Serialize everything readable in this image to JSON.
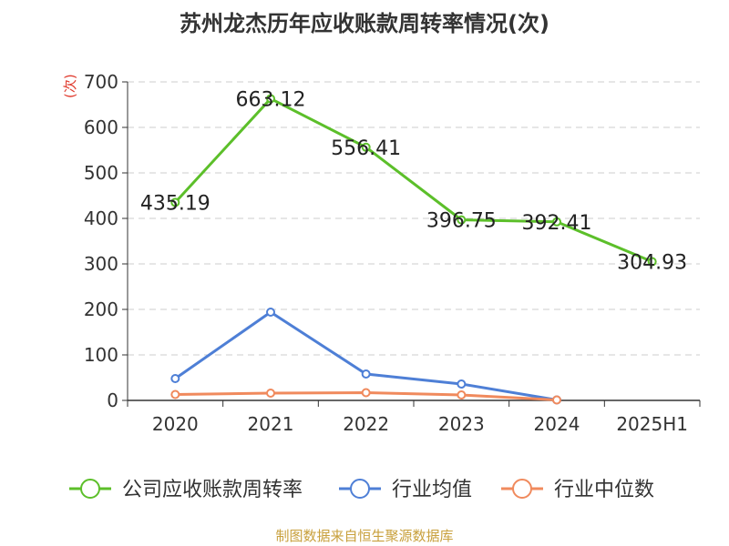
{
  "chart_data": {
    "type": "line",
    "title": "苏州龙杰历年应收账款周转率情况(次)",
    "ylabel": "(次)",
    "categories": [
      "2020",
      "2021",
      "2022",
      "2023",
      "2024",
      "2025H1"
    ],
    "ylim": [
      0,
      700
    ],
    "yticks": [
      "0",
      "100",
      "200",
      "300",
      "400",
      "500",
      "600",
      "700"
    ],
    "grid": true,
    "legend_position": "bottom",
    "series": [
      {
        "name": "公司应收账款周转率",
        "color": "#5cbf2a",
        "values": [
          435.19,
          663.12,
          556.41,
          396.75,
          392.41,
          304.93
        ],
        "labels": [
          "435.19",
          "663.12",
          "556.41",
          "396.75",
          "392.41",
          "304.93"
        ]
      },
      {
        "name": "行业均值",
        "color": "#4e7fd6",
        "values": [
          48,
          194,
          58,
          36,
          1,
          null
        ]
      },
      {
        "name": "行业中位数",
        "color": "#f08a5d",
        "values": [
          13,
          16,
          17,
          12,
          1,
          null
        ]
      }
    ]
  },
  "source": "制图数据来自恒生聚源数据库"
}
